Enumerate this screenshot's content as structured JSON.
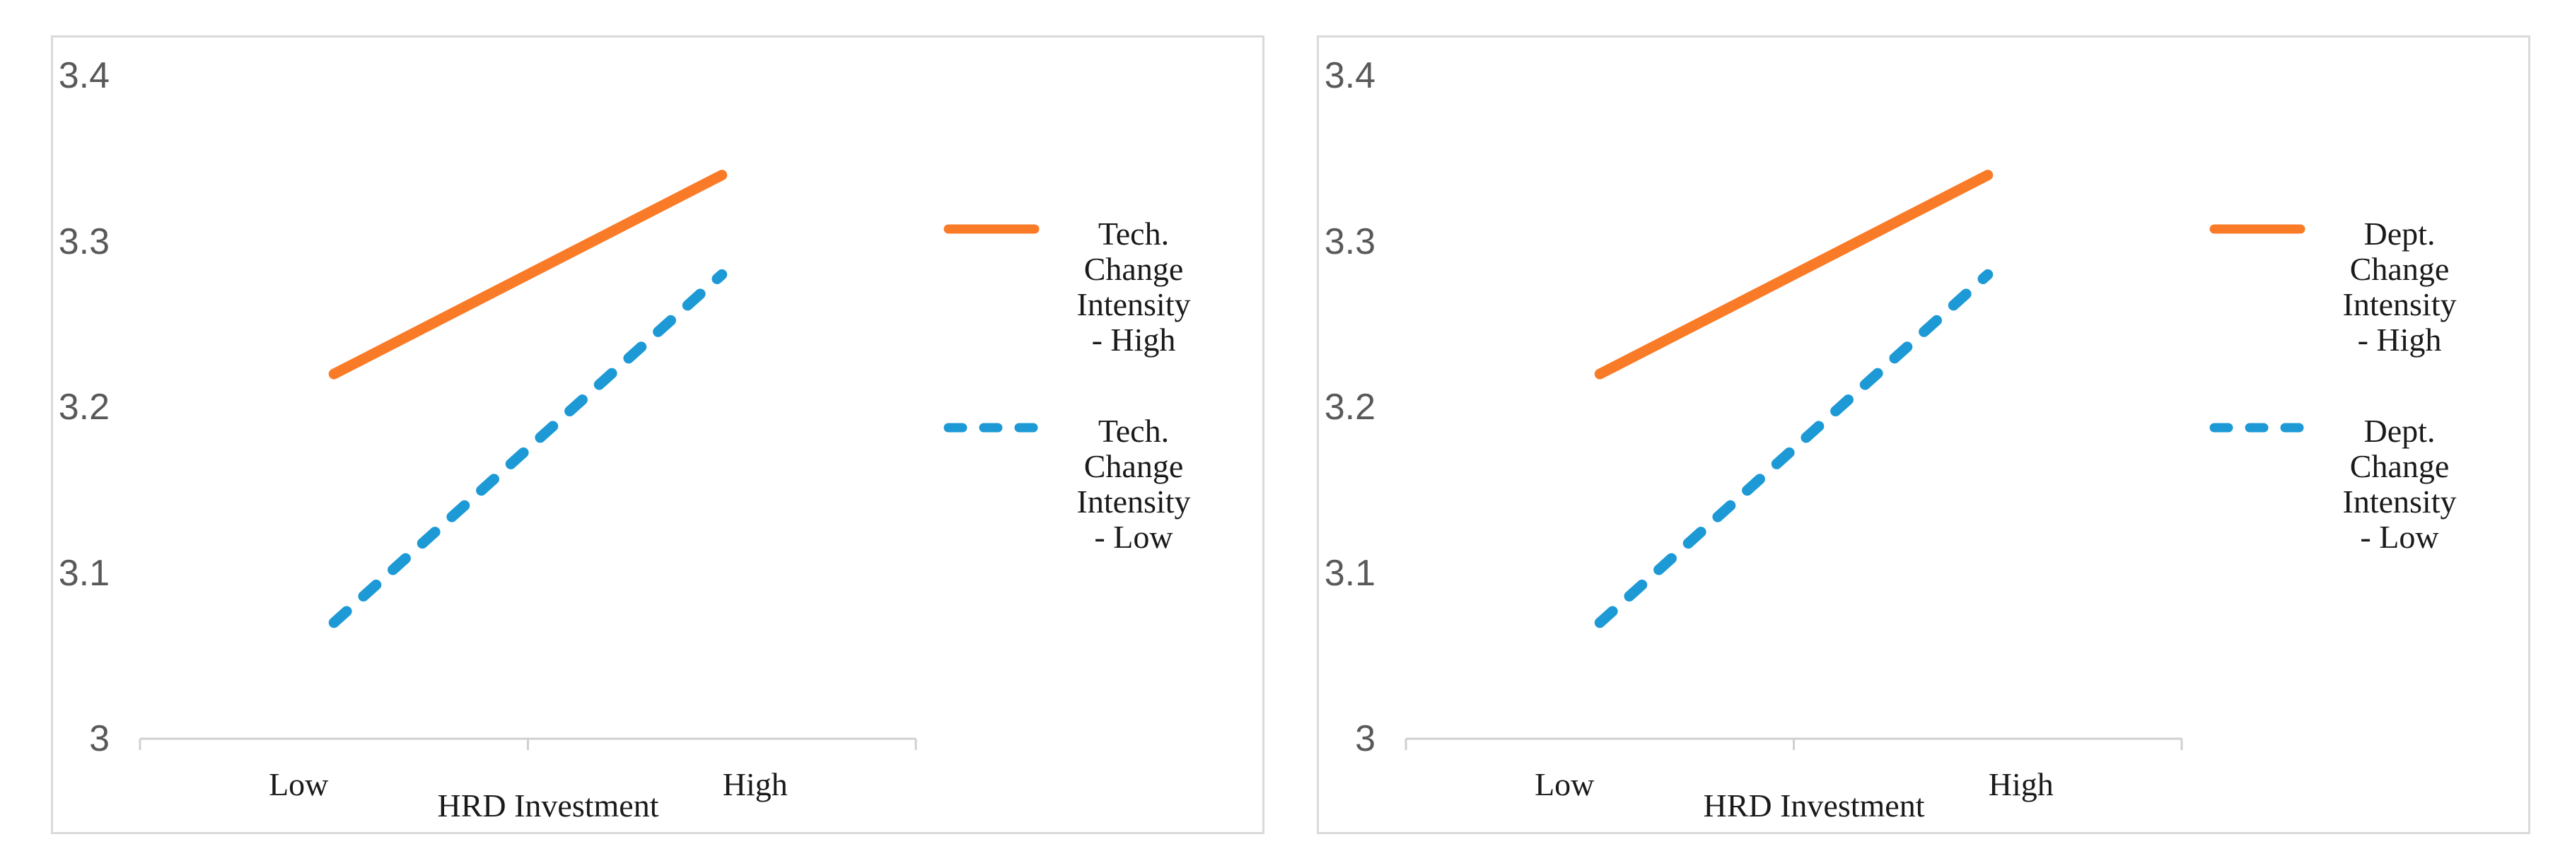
{
  "figure": {
    "panels": 2,
    "background_color": "#FFFFFF",
    "panel_border_color": "#DADADA"
  },
  "chart_data": [
    {
      "type": "line",
      "categories": [
        "Low",
        "High"
      ],
      "xlabel": "HRD Investment",
      "ylim": [
        3,
        3.4
      ],
      "yticks": [
        3.4,
        3.3,
        3.2,
        3.1,
        3
      ],
      "ytick_labels": [
        "3.4",
        "3.3",
        "3.2",
        "3.1",
        "3"
      ],
      "grid": false,
      "legend_position": "right",
      "axis_color": "#D0D0D0",
      "tick_label_color": "#595959",
      "text_color": "#1A1A1A",
      "series": [
        {
          "name": "Tech. Change Intensity - High",
          "legend_label": "Tech.\nChange\nIntensity\n- High",
          "values": [
            3.22,
            3.34
          ],
          "color": "#FA7B27",
          "line_style": "solid"
        },
        {
          "name": "Tech. Change Intensity - Low",
          "legend_label": "Tech.\nChange\nIntensity\n- Low",
          "values": [
            3.07,
            3.28
          ],
          "color": "#1D9AD6",
          "line_style": "dashed"
        }
      ]
    },
    {
      "type": "line",
      "categories": [
        "Low",
        "High"
      ],
      "xlabel": "HRD Investment",
      "ylim": [
        3,
        3.4
      ],
      "yticks": [
        3.4,
        3.3,
        3.2,
        3.1,
        3
      ],
      "ytick_labels": [
        "3.4",
        "3.3",
        "3.2",
        "3.1",
        "3"
      ],
      "grid": false,
      "legend_position": "right",
      "axis_color": "#D0D0D0",
      "tick_label_color": "#595959",
      "text_color": "#1A1A1A",
      "series": [
        {
          "name": "Dept. Change Intensity - High",
          "legend_label": "Dept.\nChange\nIntensity\n- High",
          "values": [
            3.22,
            3.34
          ],
          "color": "#FA7B27",
          "line_style": "solid"
        },
        {
          "name": "Dept. Change Intensity - Low",
          "legend_label": "Dept.\nChange\nIntensity\n- Low",
          "values": [
            3.07,
            3.28
          ],
          "color": "#1D9AD6",
          "line_style": "dashed"
        }
      ]
    }
  ]
}
